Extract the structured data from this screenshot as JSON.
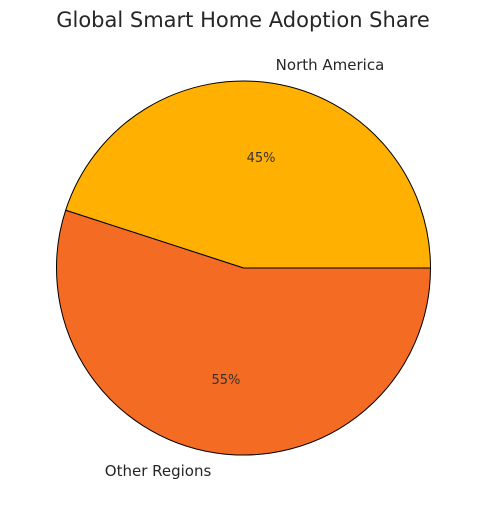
{
  "chart_data": {
    "type": "pie",
    "title": "Global Smart Home Adoption Share",
    "categories": [
      "North America",
      "Other Regions"
    ],
    "values": [
      45,
      55
    ],
    "value_labels": [
      "45%",
      "55%"
    ],
    "colors": [
      "#FFB000",
      "#F46B23"
    ],
    "start_angle_deg": 0,
    "direction": "counterclockwise",
    "edge_color": "#000000",
    "legend": "none"
  }
}
